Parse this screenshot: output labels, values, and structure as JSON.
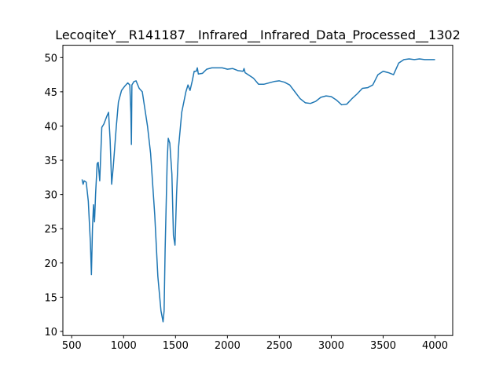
{
  "chart_data": {
    "type": "line",
    "title": "LecoqiteY__R141187__Infrared__Infrared_Data_Processed__1302",
    "color": "#1f77b4",
    "x": [
      600,
      610,
      620,
      640,
      660,
      680,
      690,
      700,
      710,
      720,
      730,
      745,
      755,
      770,
      790,
      810,
      840,
      855,
      870,
      885,
      900,
      930,
      950,
      980,
      1010,
      1040,
      1060,
      1070,
      1075,
      1080,
      1100,
      1120,
      1150,
      1180,
      1200,
      1230,
      1260,
      1300,
      1330,
      1360,
      1380,
      1390,
      1400,
      1420,
      1430,
      1445,
      1465,
      1480,
      1495,
      1510,
      1530,
      1560,
      1600,
      1620,
      1640,
      1660,
      1680,
      1700,
      1710,
      1720,
      1760,
      1800,
      1850,
      1900,
      1950,
      2000,
      2050,
      2100,
      2150,
      2160,
      2170,
      2250,
      2300,
      2350,
      2400,
      2450,
      2500,
      2550,
      2600,
      2650,
      2700,
      2750,
      2800,
      2850,
      2900,
      2950,
      3000,
      3050,
      3100,
      3150,
      3200,
      3250,
      3300,
      3350,
      3400,
      3450,
      3500,
      3550,
      3600,
      3650,
      3700,
      3750,
      3800,
      3850,
      3900,
      4000
    ],
    "values": [
      32.2,
      31.5,
      32.0,
      31.8,
      29,
      23,
      18.3,
      25,
      28.5,
      26,
      30,
      34.5,
      34.7,
      32,
      39.8,
      40.3,
      41.5,
      42,
      38,
      31.5,
      34,
      40,
      43.5,
      45.2,
      45.8,
      46.3,
      46,
      42,
      37.3,
      46,
      46.5,
      46.6,
      45.5,
      45,
      43,
      40,
      36,
      27,
      18,
      13,
      11.4,
      13,
      22,
      35,
      38.2,
      37.5,
      33,
      24,
      22.6,
      30,
      37,
      42,
      45,
      46,
      45.2,
      46.5,
      48,
      48,
      48.5,
      47.6,
      47.7,
      48.3,
      48.5,
      48.5,
      48.5,
      48.3,
      48.4,
      48.1,
      48.0,
      48.4,
      47.8,
      47,
      46.1,
      46.1,
      46.3,
      46.5,
      46.6,
      46.4,
      46,
      45,
      44,
      43.4,
      43.3,
      43.6,
      44.2,
      44.4,
      44.3,
      43.8,
      43.1,
      43.2,
      44,
      44.7,
      45.5,
      45.6,
      46,
      47.5,
      48,
      47.8,
      47.5,
      49.2,
      49.7,
      49.8,
      49.7,
      49.8,
      49.7,
      49.7
    ],
    "xlim": [
      415,
      4170
    ],
    "ylim": [
      9.4,
      51.8
    ],
    "xticks": [
      500,
      1000,
      1500,
      2000,
      2500,
      3000,
      3500,
      4000
    ],
    "yticks": [
      10,
      15,
      20,
      25,
      30,
      35,
      40,
      45,
      50
    ]
  }
}
